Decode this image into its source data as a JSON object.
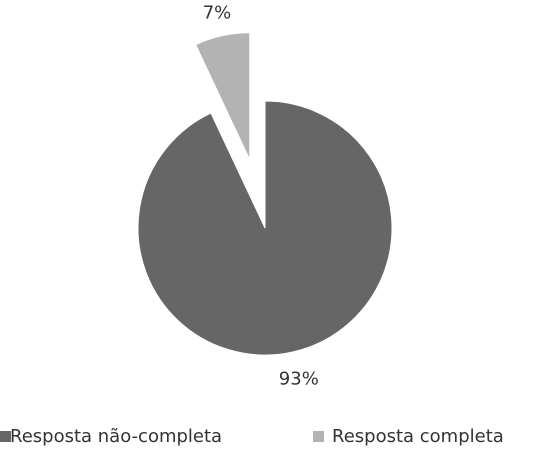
{
  "chart_data": {
    "type": "pie",
    "categories": [
      "Resposta não-completa",
      "Resposta completa"
    ],
    "values": [
      93,
      7
    ],
    "value_labels": [
      "93%",
      "7%"
    ],
    "colors": [
      "#666666",
      "#b3b3b3"
    ],
    "exploded": [
      false,
      true
    ],
    "legend": "bottom"
  }
}
